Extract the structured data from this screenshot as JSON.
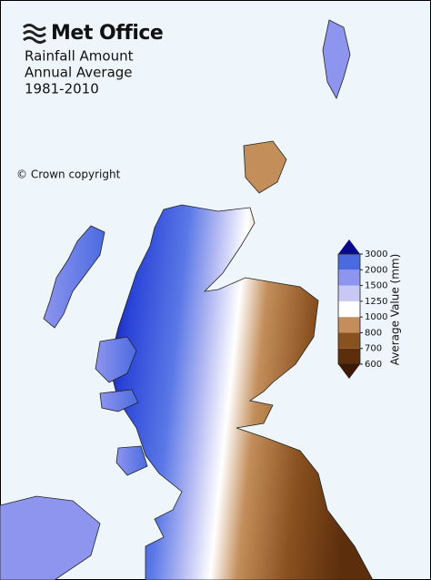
{
  "header": {
    "logo": "Met Office",
    "title_lines": [
      "Rainfall Amount",
      "Annual Average",
      "1981-2010"
    ]
  },
  "copyright": "© Crown copyright",
  "legend": {
    "title": "Average Value (mm)",
    "ticks": [
      600,
      700,
      800,
      1000,
      1250,
      1500,
      2000,
      3000
    ],
    "colors": [
      "#3d1a06",
      "#5c2e0c",
      "#8a5120",
      "#c38e5a",
      "#ffffff",
      "#c8c8f5",
      "#8e95ee",
      "#4a6be0",
      "#0a0a8c"
    ]
  }
}
